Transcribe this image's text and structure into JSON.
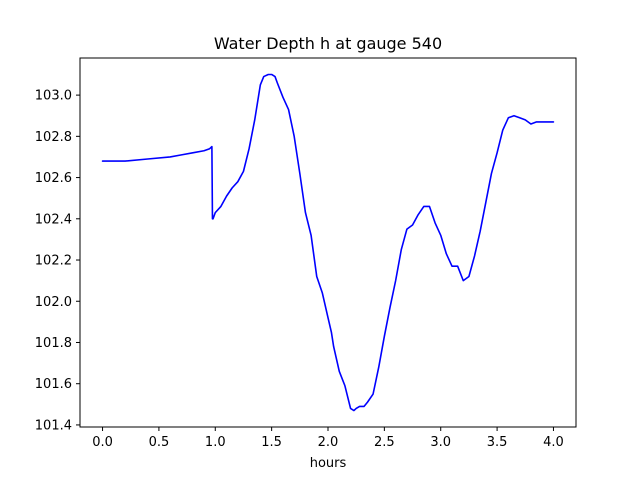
{
  "chart_data": {
    "type": "line",
    "title": "Water Depth h at gauge 540",
    "xlabel": "hours",
    "ylabel": "",
    "xlim": [
      -0.2,
      4.2
    ],
    "ylim": [
      101.39,
      103.18
    ],
    "xticks": [
      0.0,
      0.5,
      1.0,
      1.5,
      2.0,
      2.5,
      3.0,
      3.5,
      4.0
    ],
    "xtick_labels": [
      "0.0",
      "0.5",
      "1.0",
      "1.5",
      "2.0",
      "2.5",
      "3.0",
      "3.5",
      "4.0"
    ],
    "yticks": [
      101.4,
      101.6,
      101.8,
      102.0,
      102.2,
      102.4,
      102.6,
      102.8,
      103.0
    ],
    "ytick_labels": [
      "101.4",
      "101.6",
      "101.8",
      "102.0",
      "102.2",
      "102.4",
      "102.6",
      "102.8",
      "103.0"
    ],
    "grid": false,
    "legend": "none",
    "series": [
      {
        "color": "#0000ff",
        "x": [
          0.0,
          0.2,
          0.4,
          0.6,
          0.7,
          0.8,
          0.9,
          0.95,
          0.97,
          0.975,
          0.98,
          1.0,
          1.05,
          1.1,
          1.15,
          1.2,
          1.25,
          1.3,
          1.35,
          1.4,
          1.43,
          1.47,
          1.5,
          1.53,
          1.55,
          1.6,
          1.65,
          1.7,
          1.75,
          1.8,
          1.85,
          1.9,
          1.95,
          2.0,
          2.03,
          2.05,
          2.1,
          2.15,
          2.2,
          2.23,
          2.25,
          2.28,
          2.32,
          2.35,
          2.4,
          2.45,
          2.5,
          2.55,
          2.6,
          2.65,
          2.7,
          2.75,
          2.8,
          2.85,
          2.9,
          2.95,
          3.0,
          3.05,
          3.1,
          3.15,
          3.2,
          3.25,
          3.3,
          3.35,
          3.4,
          3.45,
          3.5,
          3.55,
          3.6,
          3.65,
          3.7,
          3.75,
          3.8,
          3.85,
          3.9,
          3.95,
          3.98,
          4.0
        ],
        "values": [
          102.68,
          102.68,
          102.69,
          102.7,
          102.71,
          102.72,
          102.73,
          102.74,
          102.75,
          102.4,
          102.4,
          102.43,
          102.46,
          102.51,
          102.55,
          102.58,
          102.63,
          102.74,
          102.88,
          103.05,
          103.09,
          103.1,
          103.1,
          103.09,
          103.06,
          102.99,
          102.93,
          102.8,
          102.62,
          102.43,
          102.32,
          102.12,
          102.04,
          101.92,
          101.85,
          101.78,
          101.66,
          101.59,
          101.48,
          101.47,
          101.48,
          101.49,
          101.49,
          101.51,
          101.55,
          101.68,
          101.83,
          101.97,
          102.1,
          102.25,
          102.35,
          102.37,
          102.42,
          102.46,
          102.46,
          102.38,
          102.32,
          102.23,
          102.17,
          102.17,
          102.1,
          102.12,
          102.22,
          102.34,
          102.48,
          102.62,
          102.72,
          102.83,
          102.89,
          102.9,
          102.89,
          102.88,
          102.86,
          102.87,
          102.87,
          102.87,
          102.87,
          102.87
        ]
      }
    ]
  }
}
